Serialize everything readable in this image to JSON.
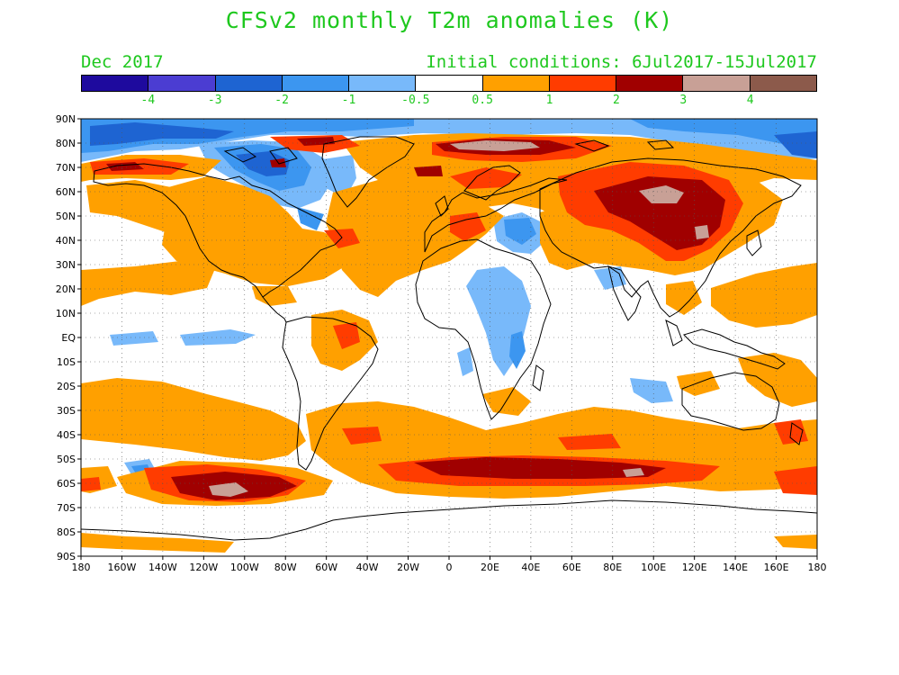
{
  "title": "CFSv2 monthly T2m anomalies (K)",
  "valid_month": "Dec 2017",
  "initial_conditions": "Initial conditions: 6Jul2017-15Jul2017",
  "colorbar": {
    "colors": [
      "#1e0a9e",
      "#4b3dd2",
      "#1e64d2",
      "#3c96f0",
      "#78b9fa",
      "#ffffff",
      "#ffa000",
      "#ff3c00",
      "#a00000",
      "#c8a096",
      "#8c5a4b"
    ],
    "labels": [
      "-4",
      "-3",
      "-2",
      "-1",
      "-0.5",
      "0.5",
      "1",
      "2",
      "3",
      "4"
    ]
  },
  "lat_labels": [
    "90N",
    "80N",
    "70N",
    "60N",
    "50N",
    "40N",
    "30N",
    "20N",
    "10N",
    "EQ",
    "10S",
    "20S",
    "30S",
    "40S",
    "50S",
    "60S",
    "70S",
    "80S",
    "90S"
  ],
  "lon_labels": [
    "180",
    "160W",
    "140W",
    "120W",
    "100W",
    "80W",
    "60W",
    "40W",
    "20W",
    "0",
    "20E",
    "40E",
    "60E",
    "80E",
    "100E",
    "120E",
    "140E",
    "160E",
    "180"
  ]
}
